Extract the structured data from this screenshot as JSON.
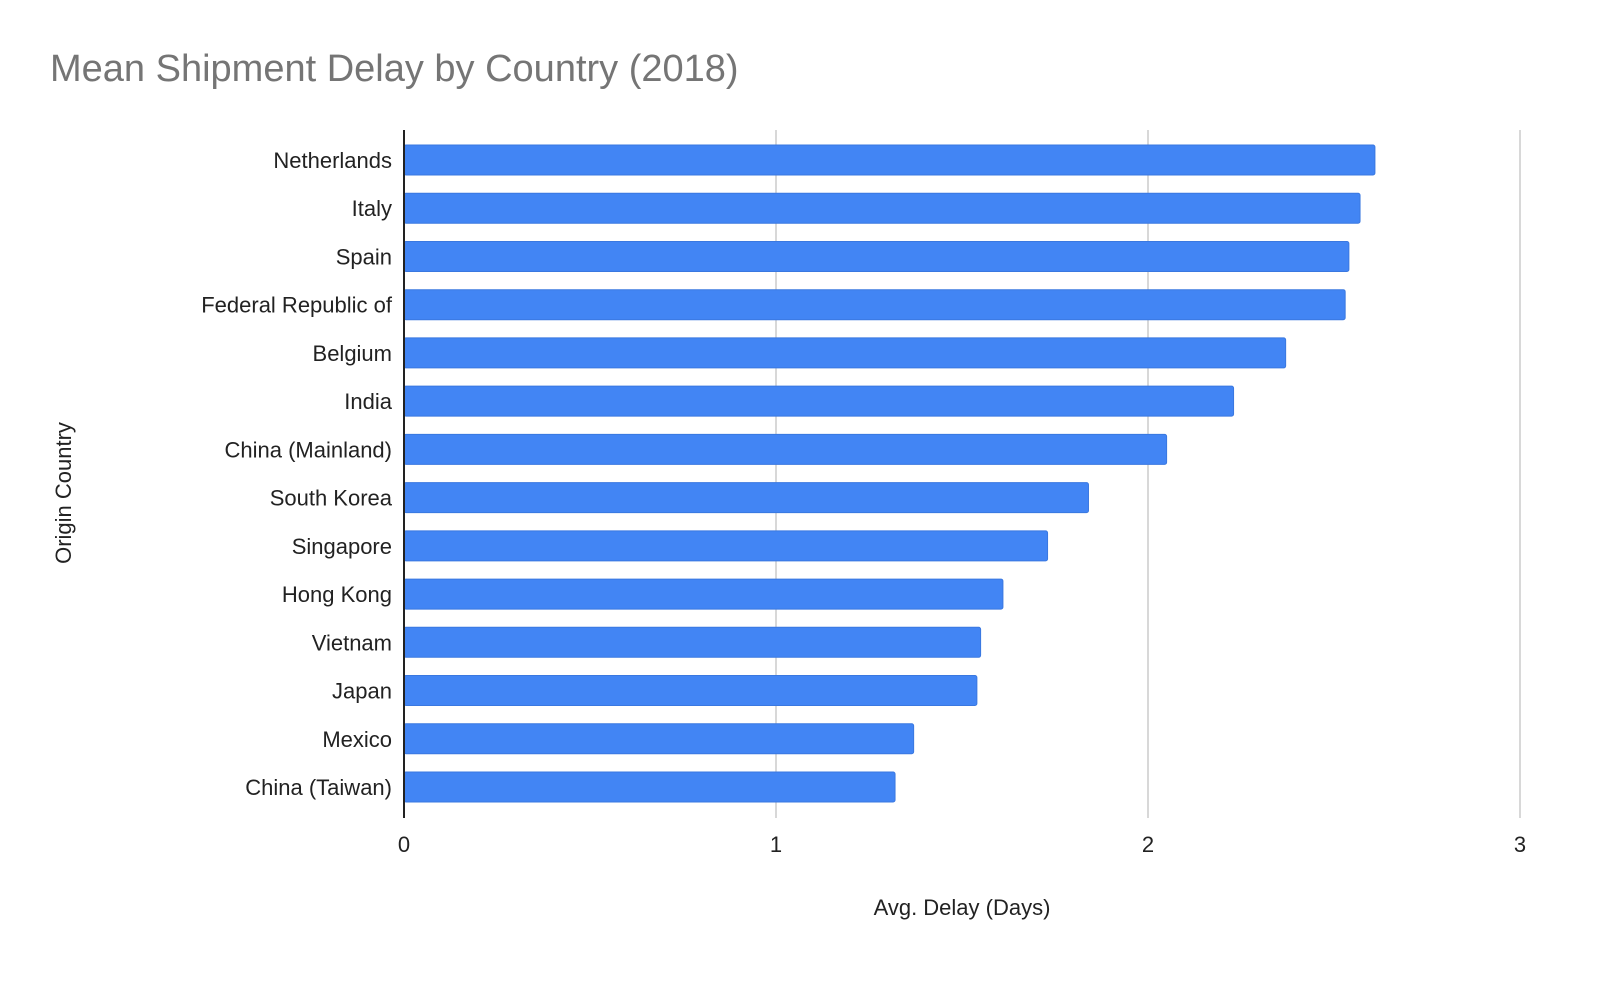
{
  "chart_data": {
    "type": "bar",
    "orientation": "horizontal",
    "title": "Mean Shipment Delay by Country (2018)",
    "xlabel": "Avg. Delay (Days)",
    "ylabel": "Origin Country",
    "xlim": [
      0,
      3
    ],
    "xticks": [
      "0",
      "1",
      "2",
      "3"
    ],
    "grid": true,
    "categories": [
      "Netherlands",
      "Italy",
      "Spain",
      "Federal Republic of",
      "Belgium",
      "India",
      "China (Mainland)",
      "South Korea",
      "Singapore",
      "Hong Kong",
      "Vietnam",
      "Japan",
      "Mexico",
      "China (Taiwan)"
    ],
    "values": [
      2.61,
      2.57,
      2.54,
      2.53,
      2.37,
      2.23,
      2.05,
      1.84,
      1.73,
      1.61,
      1.55,
      1.54,
      1.37,
      1.32
    ],
    "colors": {
      "bar": "#4285f4",
      "bar_edge": "#3a78e0",
      "grid": "#cccccc",
      "axis": "#222222",
      "title": "#757575"
    }
  }
}
